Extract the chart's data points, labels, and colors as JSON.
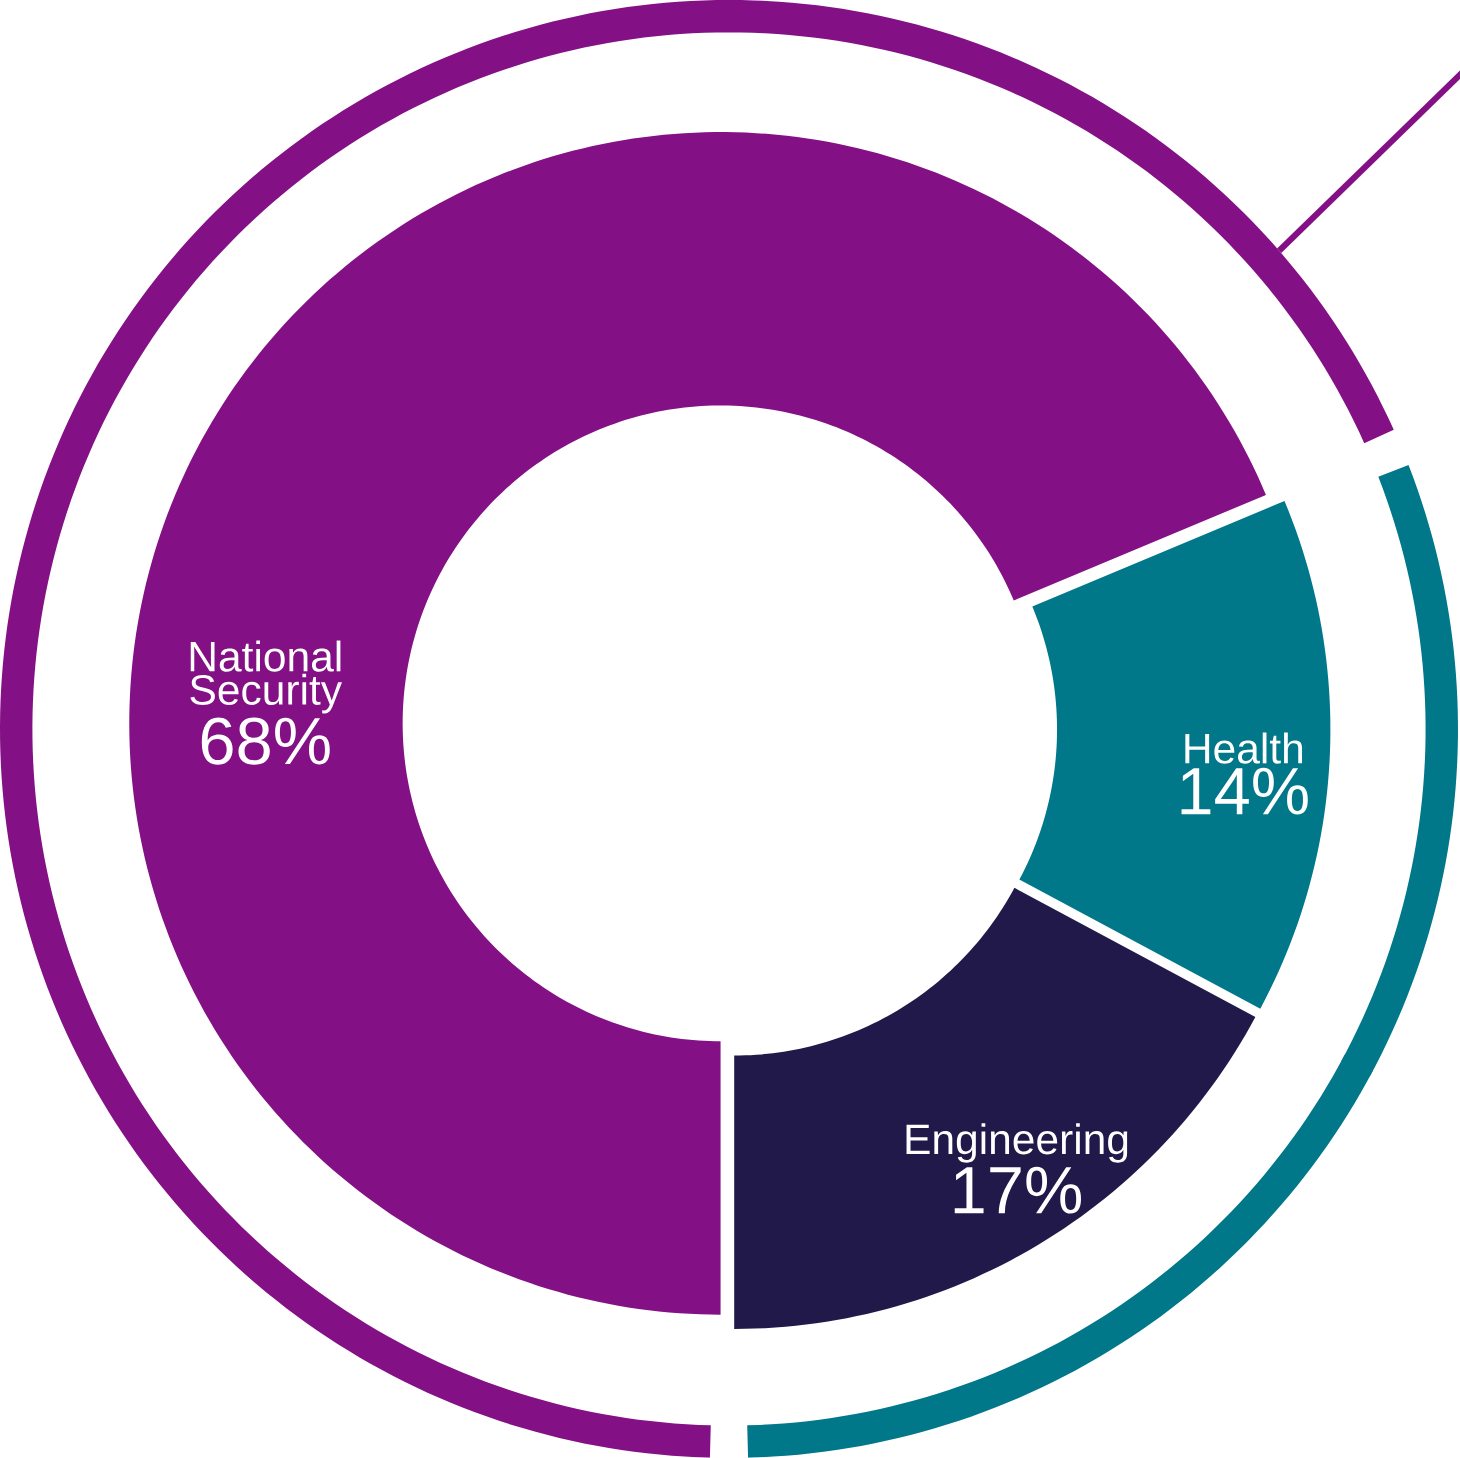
{
  "chart_data": {
    "type": "donut",
    "categories": [
      "National Security",
      "Health",
      "Engineering"
    ],
    "value_labels": [
      "68%",
      "14%",
      "17%"
    ],
    "series": [
      {
        "values": [
          68,
          14,
          17
        ],
        "colors": [
          "#841085",
          "#00788a",
          "#21194a"
        ]
      },
      {
        "values": [
          68,
          14,
          17
        ],
        "colors": [
          "#841085",
          "#00788a",
          "#00788a"
        ]
      }
    ]
  }
}
